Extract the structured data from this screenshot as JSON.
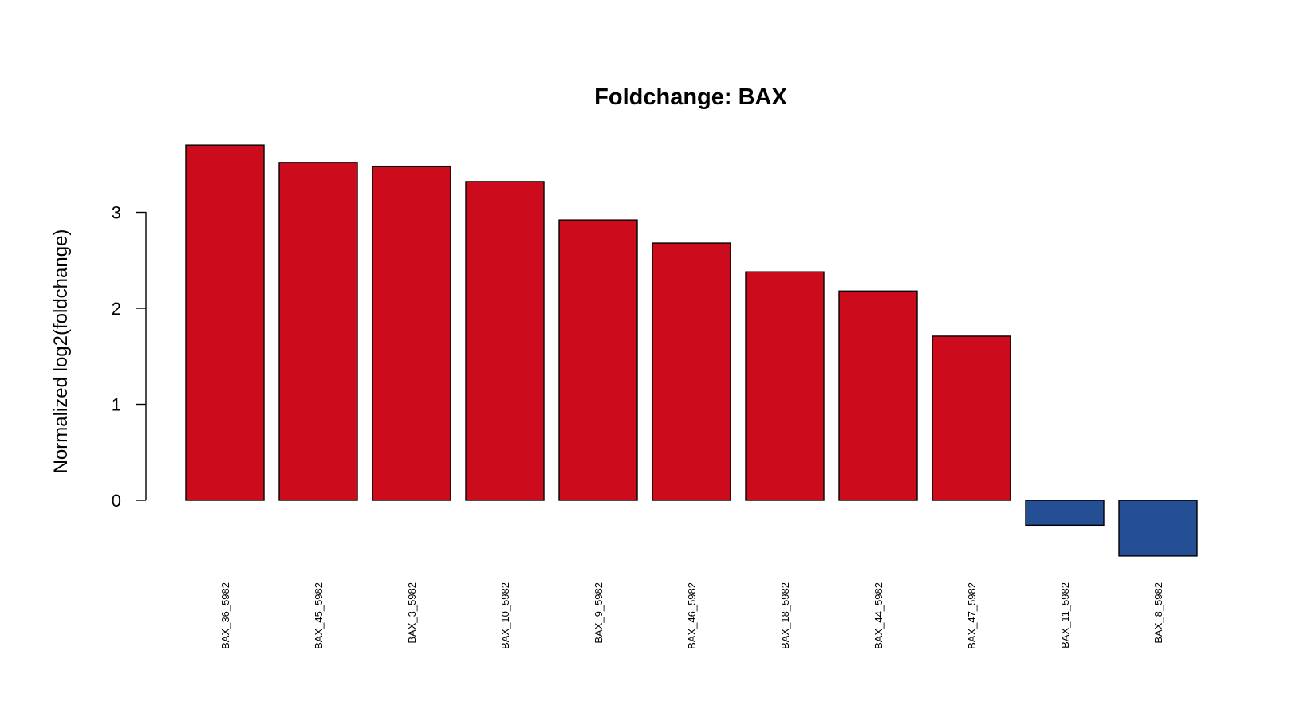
{
  "chart_data": {
    "type": "bar",
    "title": "Foldchange: BAX",
    "xlabel": "",
    "ylabel": "Normalized log2(foldchange)",
    "ylim": [
      -0.6,
      3.75
    ],
    "yticks": [
      "0",
      "1",
      "2",
      "3"
    ],
    "grid": false,
    "legend": "none",
    "colors": {
      "positive": "#cc0c1c",
      "negative": "#244f95"
    },
    "categories": [
      "BAX_36_5982",
      "BAX_45_5982",
      "BAX_3_5982",
      "BAX_10_5982",
      "BAX_9_5982",
      "BAX_46_5982",
      "BAX_18_5982",
      "BAX_44_5982",
      "BAX_47_5982",
      "BAX_11_5982",
      "BAX_8_5982"
    ],
    "values": [
      3.7,
      3.52,
      3.48,
      3.32,
      2.92,
      2.68,
      2.38,
      2.18,
      1.71,
      -0.26,
      -0.58
    ]
  }
}
